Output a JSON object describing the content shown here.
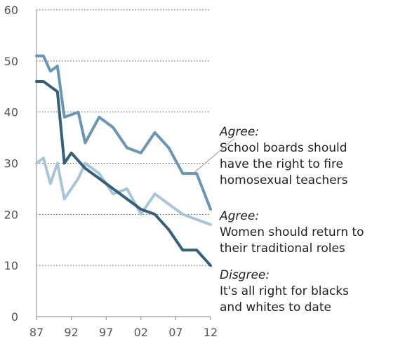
{
  "chart_data": {
    "type": "line",
    "title": "",
    "xlabel": "",
    "ylabel": "",
    "xlim": [
      1987,
      2012
    ],
    "ylim": [
      0,
      60
    ],
    "grid": true,
    "x_ticks": [
      {
        "value": 1987,
        "label": "87"
      },
      {
        "value": 1992,
        "label": "92"
      },
      {
        "value": 1997,
        "label": "97"
      },
      {
        "value": 2002,
        "label": "02"
      },
      {
        "value": 2007,
        "label": "07"
      },
      {
        "value": 2012,
        "label": "12"
      }
    ],
    "y_ticks": [
      0,
      10,
      20,
      30,
      40,
      50,
      60
    ],
    "series": [
      {
        "key": "school-boards",
        "color": "#6a95b4",
        "width": 4,
        "x": [
          1987,
          1988,
          1989,
          1990,
          1991,
          1993,
          1994,
          1996,
          1998,
          2000,
          2002,
          2004,
          2006,
          2008,
          2010,
          2012
        ],
        "y": [
          51,
          51,
          48,
          49,
          39,
          40,
          34,
          39,
          37,
          33,
          32,
          36,
          33,
          28,
          28,
          21
        ]
      },
      {
        "key": "women-roles",
        "color": "#a9c5d8",
        "width": 4,
        "x": [
          1987,
          1988,
          1989,
          1990,
          1991,
          1993,
          1994,
          1996,
          1998,
          2000,
          2002,
          2004,
          2006,
          2008,
          2010,
          2012
        ],
        "y": [
          30,
          31,
          26,
          30,
          23,
          27,
          30,
          28,
          24,
          25,
          20,
          24,
          22,
          20,
          19,
          18
        ]
      },
      {
        "key": "interracial-dating",
        "color": "#365f7a",
        "width": 4,
        "x": [
          1987,
          1988,
          1989,
          1990,
          1991,
          1992,
          1994,
          1996,
          1998,
          2000,
          2002,
          2004,
          2006,
          2008,
          2010,
          2012
        ],
        "y": [
          46,
          46,
          45,
          44,
          30,
          32,
          29,
          27,
          25,
          23,
          21,
          20,
          17,
          13,
          13,
          10
        ]
      }
    ],
    "annotations": [
      {
        "key": "school-boards",
        "head": "Agree:",
        "lines": [
          "School boards should",
          "have the right to fire",
          "homosexual teachers"
        ],
        "point": {
          "x": 2009.5,
          "y": 28
        }
      },
      {
        "key": "women-roles",
        "head": "Agree:",
        "lines": [
          "Women should return to",
          "their traditional roles"
        ]
      },
      {
        "key": "interracial-dating",
        "head": "Disgree:",
        "lines": [
          "It's all right for blacks",
          "and whites to date"
        ]
      }
    ]
  }
}
